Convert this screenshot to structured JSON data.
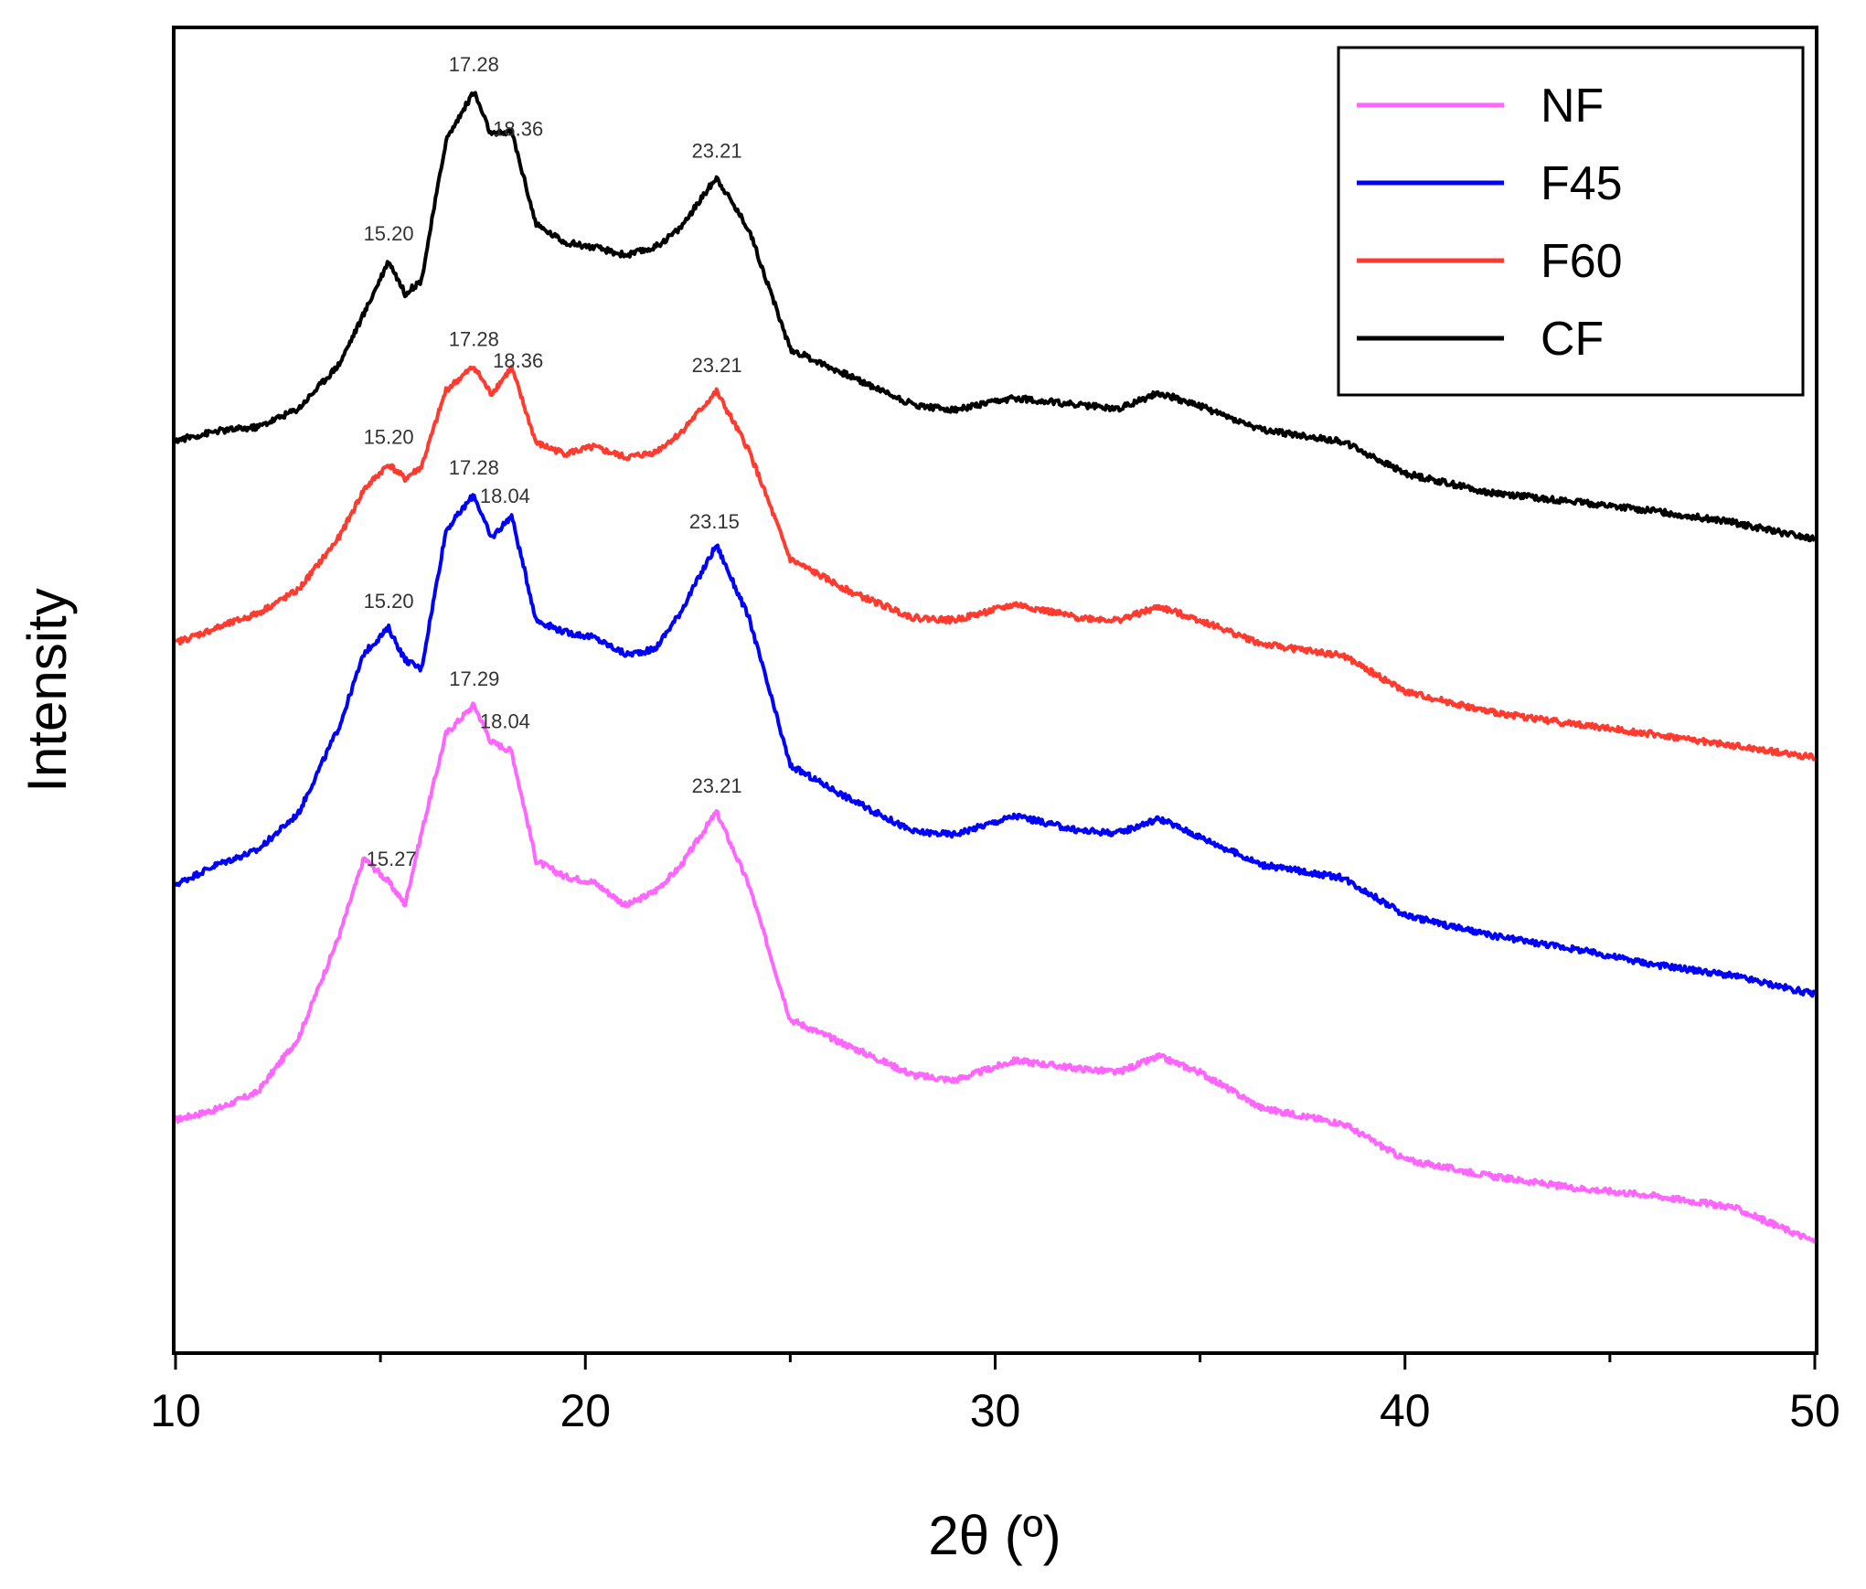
{
  "chart_data": {
    "type": "line",
    "title": "",
    "xlabel": "2θ (º)",
    "ylabel": "Intensity",
    "xlim": [
      10,
      50
    ],
    "ylim": [
      0,
      100
    ],
    "xticks": [
      10,
      20,
      30,
      40,
      50
    ],
    "x_minor_step": 5,
    "grid": false,
    "legend_position": "top-right",
    "x": [
      10,
      11,
      12,
      13,
      14,
      14.6,
      15.2,
      15.6,
      16,
      16.6,
      17.28,
      17.7,
      18.2,
      18.8,
      19.5,
      20.2,
      21.0,
      21.7,
      22.3,
      23.2,
      24.0,
      25.0,
      26.5,
      28,
      29,
      30.5,
      32,
      33,
      34,
      35,
      36.5,
      38.5,
      40,
      42,
      44,
      46,
      48,
      50
    ],
    "series": [
      {
        "name": "NF",
        "color": "#ff66ff",
        "values": [
          17.5,
          18.3,
          19.6,
          23.7,
          31.5,
          37.3,
          35.5,
          33.8,
          39.2,
          46.7,
          48.9,
          46.1,
          45.4,
          37.1,
          35.9,
          35.5,
          33.7,
          34.8,
          36.6,
          40.8,
          35.2,
          25.1,
          23.0,
          20.9,
          20.5,
          22.0,
          21.4,
          21.1,
          22.3,
          21.1,
          18.4,
          17.2,
          14.5,
          13.3,
          12.4,
          11.8,
          10.9,
          8.3
        ],
        "peak_labels": [
          {
            "x": 15.27,
            "text": "15.27"
          },
          {
            "x": 17.29,
            "text": "17.29"
          },
          {
            "x": 18.04,
            "text": "18.04"
          },
          {
            "x": 23.21,
            "text": "23.21"
          }
        ]
      },
      {
        "name": "F45",
        "color": "#0000ff",
        "values": [
          35.3,
          36.8,
          37.9,
          40.7,
          47.3,
          52.8,
          54.7,
          52.3,
          51.6,
          62.1,
          64.8,
          61.5,
          63.2,
          55.3,
          54.4,
          54.0,
          52.7,
          53.1,
          55.8,
          61.0,
          55.4,
          44.3,
          41.7,
          39.3,
          39.1,
          40.5,
          39.4,
          39.2,
          40.3,
          38.9,
          36.8,
          35.8,
          33.0,
          31.5,
          30.5,
          29.3,
          28.4,
          27.0
        ],
        "peak_labels": [
          {
            "x": 15.2,
            "text": "15.20"
          },
          {
            "x": 17.28,
            "text": "17.28"
          },
          {
            "x": 18.04,
            "text": "18.04"
          },
          {
            "x": 23.15,
            "text": "23.15"
          }
        ]
      },
      {
        "name": "F60",
        "color": "#ff3b30",
        "values": [
          53.6,
          54.7,
          55.8,
          57.6,
          61.6,
          65.2,
          67.1,
          66.0,
          66.9,
          72.7,
          74.5,
          72.4,
          74.4,
          68.7,
          67.9,
          68.4,
          67.6,
          68.0,
          69.4,
          72.6,
          68.1,
          59.9,
          57.4,
          55.5,
          55.3,
          56.5,
          55.5,
          55.3,
          56.3,
          55.3,
          53.5,
          52.6,
          49.9,
          48.4,
          47.5,
          46.7,
          45.8,
          44.9
        ],
        "peak_labels": [
          {
            "x": 15.2,
            "text": "15.20"
          },
          {
            "x": 17.28,
            "text": "17.28"
          },
          {
            "x": 18.36,
            "text": "18.36"
          },
          {
            "x": 23.21,
            "text": "23.21"
          }
        ]
      },
      {
        "name": "CF",
        "color": "#000000",
        "values": [
          68.9,
          69.6,
          69.9,
          71.3,
          74.7,
          78.5,
          82.5,
          80.0,
          81.0,
          91.6,
          95.3,
          92.0,
          92.3,
          85.2,
          83.9,
          83.5,
          82.9,
          83.5,
          84.9,
          88.8,
          84.8,
          75.8,
          73.7,
          71.6,
          71.2,
          72.1,
          71.6,
          71.3,
          72.5,
          71.5,
          69.7,
          68.8,
          66.4,
          65.0,
          64.3,
          63.6,
          62.7,
          61.4
        ],
        "peak_labels": [
          {
            "x": 15.2,
            "text": "15.20"
          },
          {
            "x": 17.28,
            "text": "17.28"
          },
          {
            "x": 18.36,
            "text": "18.36"
          },
          {
            "x": 23.21,
            "text": "23.21"
          }
        ]
      }
    ]
  }
}
